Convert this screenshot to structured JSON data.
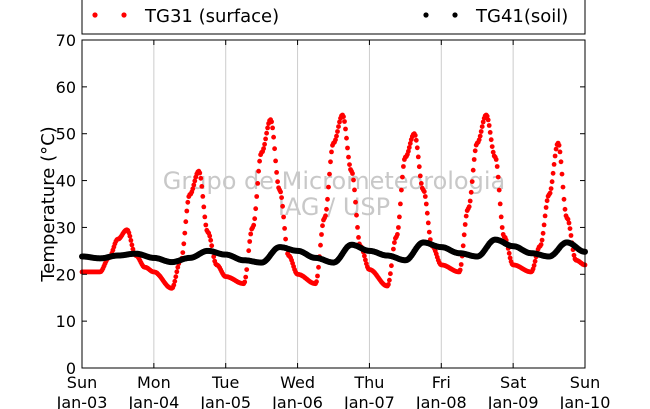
{
  "chart_data": {
    "type": "scatter",
    "title": "",
    "xlabel": "",
    "ylabel": "Temperature (°C)",
    "ylim": [
      0,
      70
    ],
    "xlim": [
      "2015-01-03",
      "2015-01-10"
    ],
    "x_ticks": [
      {
        "day": "Sun",
        "date": "Jan-03"
      },
      {
        "day": "Mon",
        "date": "Jan-04"
      },
      {
        "day": "Tue",
        "date": "Jan-05"
      },
      {
        "day": "Wed",
        "date": "Jan-06"
      },
      {
        "day": "Thu",
        "date": "Jan-07"
      },
      {
        "day": "Fri",
        "date": "Jan-08"
      },
      {
        "day": "Sat",
        "date": "Jan-09"
      },
      {
        "day": "Sun",
        "date": "Jan-10"
      }
    ],
    "y_ticks": [
      0,
      10,
      20,
      30,
      40,
      50,
      60,
      70
    ],
    "grid": "vertical",
    "legend_position": "top",
    "watermark": [
      "Grupo de Micrometeorologia",
      "IAG / USP"
    ],
    "series": [
      {
        "name": "TG31 (surface)",
        "color": "#ff0000",
        "x": [
          "2015-01-03 00:00",
          "2015-01-03 06:00",
          "2015-01-03 09:00",
          "2015-01-03 12:00",
          "2015-01-03 15:00",
          "2015-01-03 18:00",
          "2015-01-03 21:00",
          "2015-01-04 00:00",
          "2015-01-04 06:00",
          "2015-01-04 09:00",
          "2015-01-04 12:00",
          "2015-01-04 15:00",
          "2015-01-04 18:00",
          "2015-01-04 21:00",
          "2015-01-05 00:00",
          "2015-01-05 06:00",
          "2015-01-05 09:00",
          "2015-01-05 12:00",
          "2015-01-05 15:00",
          "2015-01-05 18:00",
          "2015-01-05 21:00",
          "2015-01-06 00:00",
          "2015-01-06 06:00",
          "2015-01-06 09:00",
          "2015-01-06 12:00",
          "2015-01-06 15:00",
          "2015-01-06 18:00",
          "2015-01-06 21:00",
          "2015-01-07 00:00",
          "2015-01-07 06:00",
          "2015-01-07 09:00",
          "2015-01-07 12:00",
          "2015-01-07 15:00",
          "2015-01-07 18:00",
          "2015-01-07 21:00",
          "2015-01-08 00:00",
          "2015-01-08 06:00",
          "2015-01-08 09:00",
          "2015-01-08 12:00",
          "2015-01-08 15:00",
          "2015-01-08 18:00",
          "2015-01-08 21:00",
          "2015-01-09 00:00",
          "2015-01-09 06:00",
          "2015-01-09 09:00",
          "2015-01-09 12:00",
          "2015-01-09 15:00",
          "2015-01-09 18:00",
          "2015-01-09 21:00",
          "2015-01-10 00:00"
        ],
        "y": [
          20.5,
          20.5,
          23.5,
          27.5,
          29.5,
          24.0,
          21.5,
          20.5,
          17.0,
          23.0,
          37.0,
          42.0,
          29.0,
          22.0,
          19.5,
          18.0,
          30.0,
          46.0,
          53.0,
          38.0,
          24.0,
          20.0,
          18.0,
          32.0,
          48.0,
          54.0,
          42.0,
          26.0,
          21.0,
          17.5,
          28.0,
          45.0,
          50.0,
          38.0,
          26.0,
          22.0,
          20.5,
          34.0,
          48.0,
          54.0,
          45.0,
          28.0,
          22.0,
          20.5,
          26.0,
          37.0,
          48.0,
          32.0,
          23.0,
          22.0
        ]
      },
      {
        "name": "TG41(soil)",
        "color": "#000000",
        "x": [
          "2015-01-03 00:00",
          "2015-01-03 06:00",
          "2015-01-03 12:00",
          "2015-01-03 18:00",
          "2015-01-04 00:00",
          "2015-01-04 06:00",
          "2015-01-04 12:00",
          "2015-01-04 18:00",
          "2015-01-05 00:00",
          "2015-01-05 06:00",
          "2015-01-05 12:00",
          "2015-01-05 18:00",
          "2015-01-06 00:00",
          "2015-01-06 06:00",
          "2015-01-06 12:00",
          "2015-01-06 18:00",
          "2015-01-07 00:00",
          "2015-01-07 06:00",
          "2015-01-07 12:00",
          "2015-01-07 18:00",
          "2015-01-08 00:00",
          "2015-01-08 06:00",
          "2015-01-08 12:00",
          "2015-01-08 18:00",
          "2015-01-09 00:00",
          "2015-01-09 06:00",
          "2015-01-09 12:00",
          "2015-01-09 18:00",
          "2015-01-10 00:00"
        ],
        "y": [
          23.8,
          23.4,
          24.0,
          24.4,
          23.5,
          22.6,
          23.5,
          25.0,
          24.2,
          23.0,
          22.5,
          25.8,
          25.0,
          23.5,
          22.5,
          26.3,
          25.0,
          24.0,
          23.0,
          26.8,
          25.8,
          24.5,
          23.8,
          27.4,
          26.0,
          24.5,
          23.8,
          26.8,
          24.8
        ]
      }
    ]
  }
}
